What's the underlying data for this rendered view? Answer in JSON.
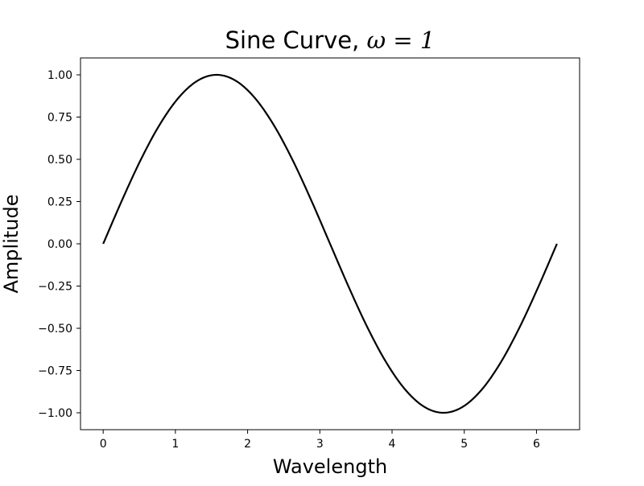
{
  "chart_data": {
    "type": "line",
    "title_text": "Sine Curve,",
    "title_math": "ω = 1",
    "xlabel": "Wavelength",
    "ylabel": "Amplitude",
    "xlim": [
      -0.314,
      6.597
    ],
    "ylim": [
      -1.1,
      1.1
    ],
    "x_ticks": [
      {
        "value": 0,
        "label": "0"
      },
      {
        "value": 1,
        "label": "1"
      },
      {
        "value": 2,
        "label": "2"
      },
      {
        "value": 3,
        "label": "3"
      },
      {
        "value": 4,
        "label": "4"
      },
      {
        "value": 5,
        "label": "5"
      },
      {
        "value": 6,
        "label": "6"
      }
    ],
    "y_ticks": [
      {
        "value": 1.0,
        "label": "1.00"
      },
      {
        "value": 0.75,
        "label": "0.75"
      },
      {
        "value": 0.5,
        "label": "0.50"
      },
      {
        "value": 0.25,
        "label": "0.25"
      },
      {
        "value": 0.0,
        "label": "0.00"
      },
      {
        "value": -0.25,
        "label": "−0.25"
      },
      {
        "value": -0.5,
        "label": "−0.50"
      },
      {
        "value": -0.75,
        "label": "−0.75"
      },
      {
        "value": -1.0,
        "label": "−1.00"
      }
    ],
    "grid": false,
    "series": [
      {
        "color": "#000000",
        "x": [
          0.0,
          0.2618,
          0.5236,
          0.7854,
          1.0472,
          1.309,
          1.5708,
          1.8326,
          2.0944,
          2.3562,
          2.618,
          2.8798,
          3.1416,
          3.4034,
          3.6652,
          3.927,
          4.1888,
          4.4506,
          4.7124,
          4.9742,
          5.236,
          5.4978,
          5.7596,
          6.0214,
          6.2832
        ],
        "y": [
          0.0,
          0.2588,
          0.5,
          0.7071,
          0.866,
          0.9659,
          1.0,
          0.9659,
          0.866,
          0.7071,
          0.5,
          0.2588,
          0.0,
          -0.2588,
          -0.5,
          -0.7071,
          -0.866,
          -0.9659,
          -1.0,
          -0.9659,
          -0.866,
          -0.7071,
          -0.5,
          -0.2588,
          0.0
        ]
      }
    ]
  }
}
